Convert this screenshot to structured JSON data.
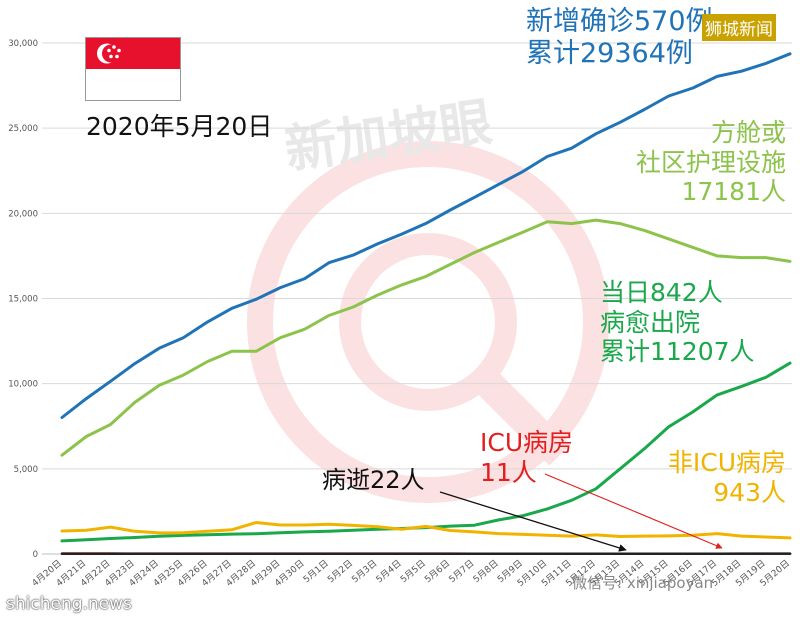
{
  "chart_data": {
    "type": "line",
    "categories": [
      "4月20日",
      "4月21日",
      "4月22日",
      "4月23日",
      "4月24日",
      "4月25日",
      "4月26日",
      "4月27日",
      "4月28日",
      "4月29日",
      "4月30日",
      "5月1日",
      "5月2日",
      "5月3日",
      "5月4日",
      "5月5日",
      "5月6日",
      "5月7日",
      "5月8日",
      "5月9日",
      "5月10日",
      "5月11日",
      "5月12日",
      "5月13日",
      "5月14日",
      "5月15日",
      "5月16日",
      "5月17日",
      "5月18日",
      "5月19日",
      "5月20日"
    ],
    "ylim": [
      0,
      30000
    ],
    "yticks": [
      0,
      5000,
      10000,
      15000,
      20000,
      25000,
      30000
    ],
    "ytick_labels": [
      "0",
      "5,000",
      "10,000",
      "15,000",
      "20,000",
      "25,000",
      "30,000"
    ],
    "grid": true,
    "series": [
      {
        "key": "confirmed",
        "color": "#1f73b6",
        "values": [
          8014,
          9125,
          10141,
          11178,
          12075,
          12693,
          13624,
          14423,
          14951,
          15641,
          16169,
          17101,
          17548,
          18205,
          18778,
          19410,
          20198,
          20939,
          21707,
          22460,
          23336,
          23822,
          24671,
          25346,
          26098,
          26891,
          27356,
          28038,
          28343,
          28794,
          29364
        ]
      },
      {
        "key": "community_care",
        "color": "#8cc34a",
        "values": [
          5800,
          6900,
          7600,
          8900,
          9900,
          10500,
          11300,
          11900,
          11900,
          12700,
          13200,
          14000,
          14500,
          15200,
          15800,
          16300,
          17000,
          17700,
          18300,
          18900,
          19500,
          19400,
          19600,
          19400,
          19000,
          18500,
          18000,
          17500,
          17400,
          17400,
          17181
        ]
      },
      {
        "key": "discharged",
        "color": "#1aa84b",
        "values": [
          770,
          840,
          910,
          970,
          1040,
          1090,
          1130,
          1170,
          1190,
          1250,
          1300,
          1330,
          1400,
          1450,
          1500,
          1550,
          1640,
          1690,
          2000,
          2250,
          2650,
          3150,
          3830,
          5000,
          6180,
          7470,
          8340,
          9340,
          9840,
          10365,
          11207
        ]
      },
      {
        "key": "non_icu",
        "color": "#f0b400",
        "values": [
          1350,
          1400,
          1580,
          1330,
          1240,
          1250,
          1330,
          1420,
          1850,
          1700,
          1700,
          1750,
          1680,
          1600,
          1450,
          1620,
          1380,
          1300,
          1200,
          1150,
          1100,
          1050,
          1120,
          1030,
          1050,
          1060,
          1100,
          1200,
          1050,
          1000,
          943
        ]
      },
      {
        "key": "icu",
        "color": "#e31e1e",
        "values": [
          31,
          29,
          27,
          25,
          25,
          25,
          24,
          24,
          23,
          23,
          23,
          22,
          22,
          22,
          22,
          22,
          21,
          20,
          20,
          20,
          20,
          20,
          20,
          18,
          17,
          17,
          16,
          14,
          13,
          12,
          11
        ]
      },
      {
        "key": "deaths",
        "color": "#222222",
        "values": [
          11,
          11,
          11,
          12,
          12,
          12,
          12,
          14,
          14,
          14,
          15,
          16,
          16,
          16,
          17,
          17,
          18,
          18,
          19,
          19,
          19,
          20,
          20,
          20,
          20,
          20,
          20,
          20,
          21,
          21,
          22
        ]
      }
    ]
  },
  "annotations": {
    "date": "2020年5月20日",
    "confirmed_line1": "新增确诊570例",
    "confirmed_line2": "累计29364例",
    "cc_line1": "方舱或",
    "cc_line2": "社区护理设施",
    "cc_line3": "17181人",
    "disch_line1": "当日842人",
    "disch_line2": "病愈出院",
    "disch_line3": "累计11207人",
    "icu_line1": "ICU病房",
    "icu_line2": "11人",
    "nonicu_line1": "非ICU病房",
    "nonicu_line2": "943人",
    "death": "病逝22人"
  },
  "watermarks": {
    "brand": "狮城新闻",
    "center": "新加坡眼",
    "site": "shicheng.news",
    "wechat": "微信号: xinjiapoyan"
  },
  "flag": {
    "top_color": "#e8112d",
    "bottom_color": "#ffffff"
  }
}
